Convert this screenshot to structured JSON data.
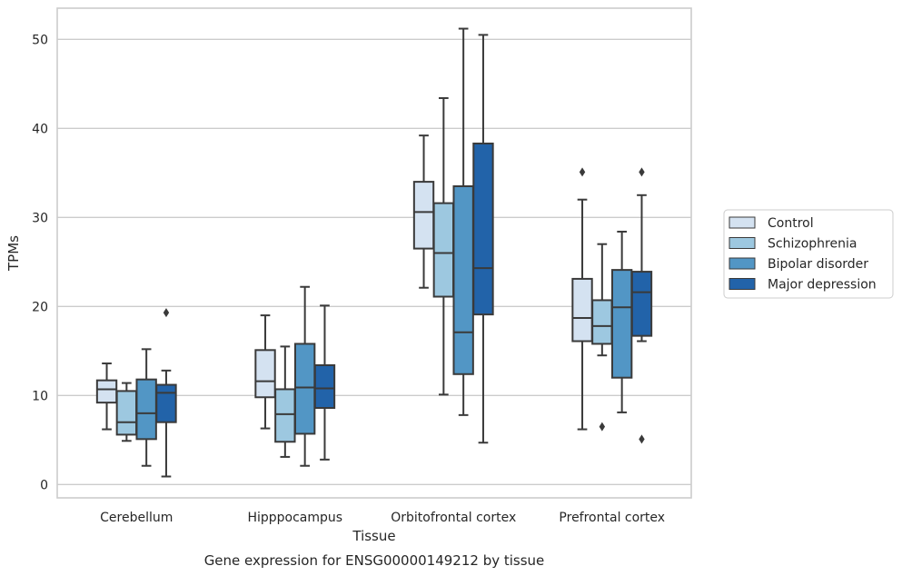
{
  "chart_data": {
    "type": "boxplot",
    "caption": "Gene expression for ENSG00000149212 by tissue",
    "xlabel": "Tissue",
    "ylabel": "TPMs",
    "ylim": [
      -1.5,
      53.5
    ],
    "yticks": [
      0,
      10,
      20,
      30,
      40,
      50
    ],
    "grid": "horizontal",
    "legend_position": "right",
    "categories": [
      "Cerebellum",
      "Hipppocampus",
      "Orbitofrontal cortex",
      "Prefrontal cortex"
    ],
    "series": [
      {
        "name": "Control",
        "color": "#d4e2f1",
        "boxes": [
          {
            "whislo": 6.2,
            "q1": 9.2,
            "med": 10.7,
            "q3": 11.7,
            "whishi": 13.6,
            "fliers": []
          },
          {
            "whislo": 6.3,
            "q1": 9.8,
            "med": 11.6,
            "q3": 15.1,
            "whishi": 19.0,
            "fliers": []
          },
          {
            "whislo": 22.1,
            "q1": 26.5,
            "med": 30.6,
            "q3": 34.0,
            "whishi": 39.2,
            "fliers": []
          },
          {
            "whislo": 6.2,
            "q1": 16.1,
            "med": 18.7,
            "q3": 23.1,
            "whishi": 32.0,
            "fliers": [
              35.1
            ]
          }
        ]
      },
      {
        "name": "Schizophrenia",
        "color": "#9dc8e0",
        "boxes": [
          {
            "whislo": 4.9,
            "q1": 5.6,
            "med": 7.0,
            "q3": 10.5,
            "whishi": 11.4,
            "fliers": []
          },
          {
            "whislo": 3.1,
            "q1": 4.8,
            "med": 7.9,
            "q3": 10.7,
            "whishi": 15.5,
            "fliers": []
          },
          {
            "whislo": 10.1,
            "q1": 21.1,
            "med": 26.0,
            "q3": 31.6,
            "whishi": 43.4,
            "fliers": []
          },
          {
            "whislo": 14.5,
            "q1": 15.8,
            "med": 17.8,
            "q3": 20.7,
            "whishi": 27.0,
            "fliers": [
              6.5
            ]
          }
        ]
      },
      {
        "name": "Bipolar disorder",
        "color": "#5296c5",
        "boxes": [
          {
            "whislo": 2.1,
            "q1": 5.1,
            "med": 8.0,
            "q3": 11.8,
            "whishi": 15.2,
            "fliers": []
          },
          {
            "whislo": 2.1,
            "q1": 5.7,
            "med": 10.9,
            "q3": 15.8,
            "whishi": 22.2,
            "fliers": []
          },
          {
            "whislo": 7.8,
            "q1": 12.4,
            "med": 17.1,
            "q3": 33.5,
            "whishi": 51.2,
            "fliers": []
          },
          {
            "whislo": 8.1,
            "q1": 12.0,
            "med": 19.9,
            "q3": 24.1,
            "whishi": 28.4,
            "fliers": []
          }
        ]
      },
      {
        "name": "Major depression",
        "color": "#2263a9",
        "boxes": [
          {
            "whislo": 0.9,
            "q1": 7.0,
            "med": 10.3,
            "q3": 11.2,
            "whishi": 12.8,
            "fliers": [
              19.3
            ]
          },
          {
            "whislo": 2.8,
            "q1": 8.6,
            "med": 10.8,
            "q3": 13.4,
            "whishi": 20.1,
            "fliers": []
          },
          {
            "whislo": 4.7,
            "q1": 19.1,
            "med": 24.3,
            "q3": 38.3,
            "whishi": 50.5,
            "fliers": []
          },
          {
            "whislo": 16.1,
            "q1": 16.7,
            "med": 21.6,
            "q3": 23.9,
            "whishi": 32.5,
            "fliers": [
              35.1,
              5.1
            ]
          }
        ]
      }
    ]
  }
}
